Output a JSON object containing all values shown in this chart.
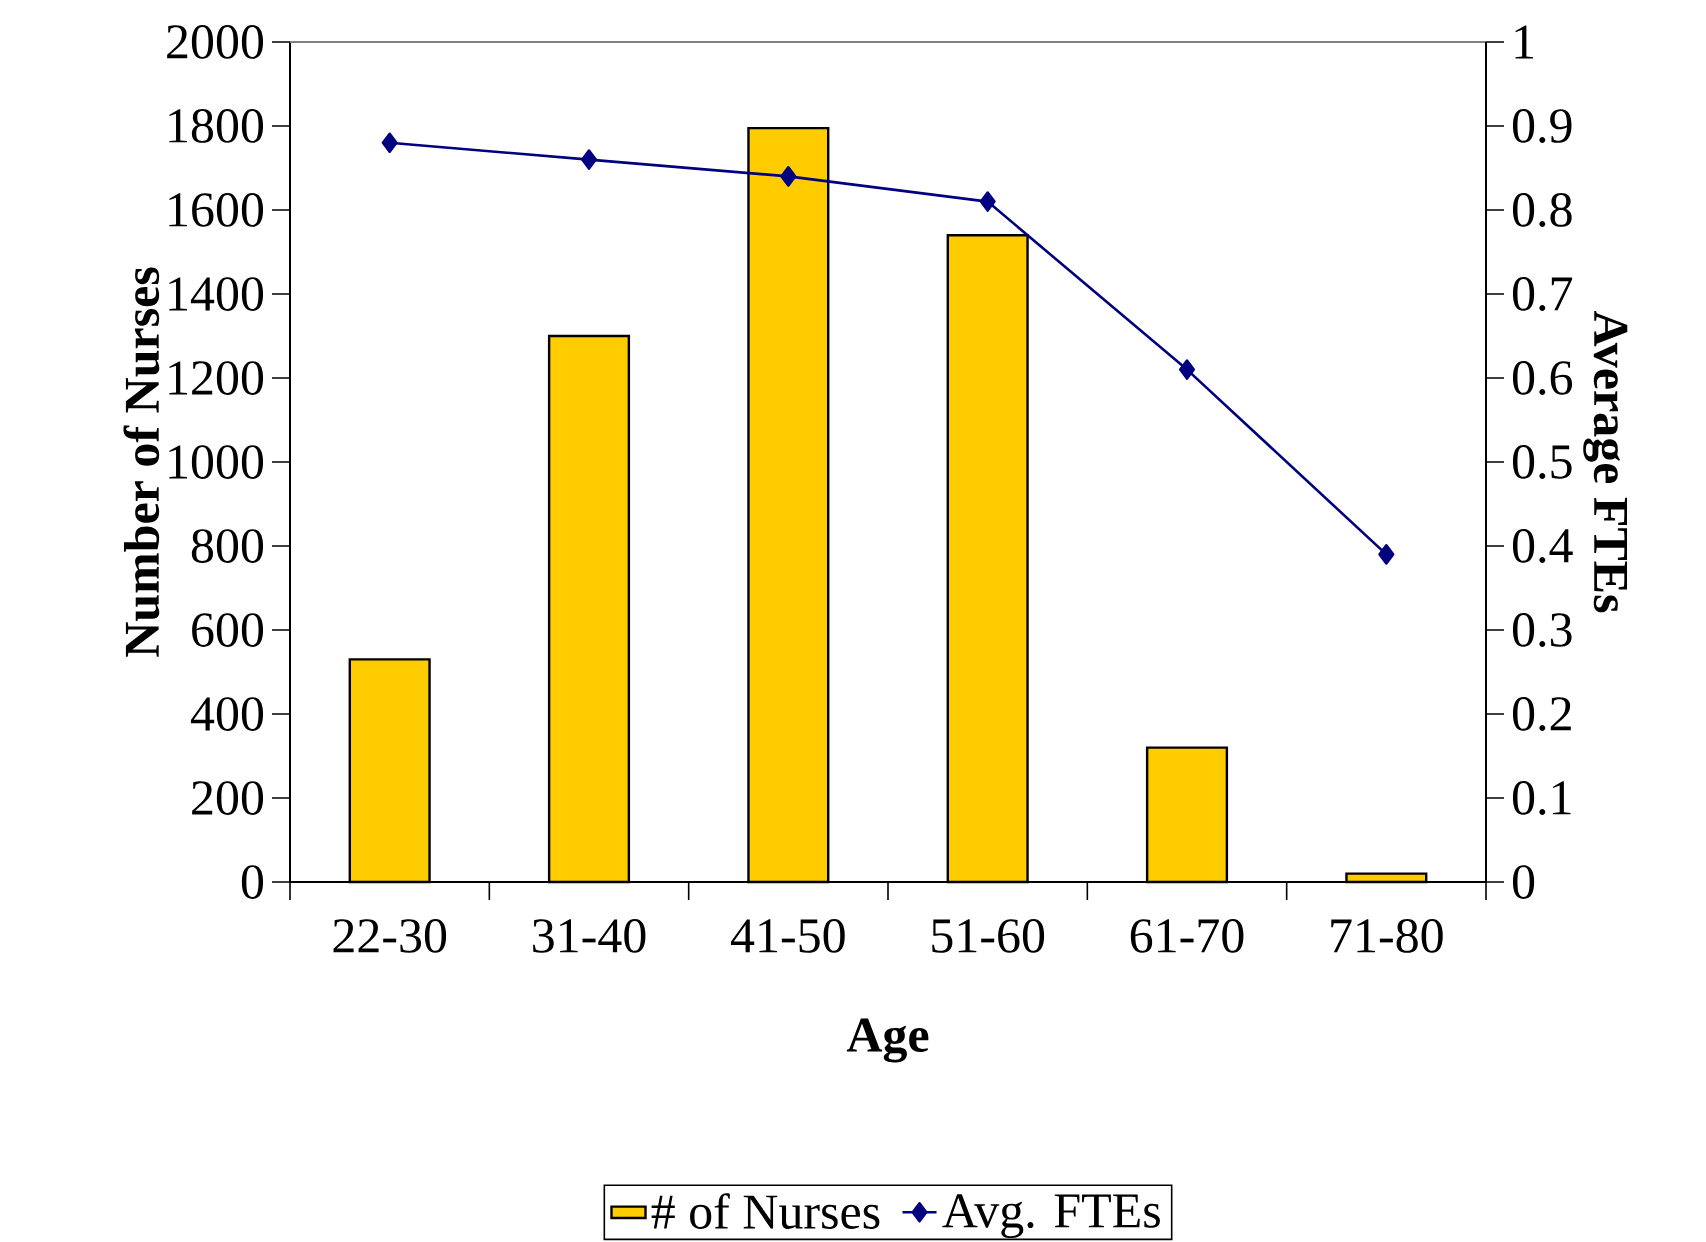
{
  "chart_data": {
    "type": "bar",
    "xlabel": "Age",
    "ylabel": "Number of Nurses",
    "y2label": "Average FTEs",
    "categories": [
      "22-30",
      "31-40",
      "41-50",
      "51-60",
      "61-70",
      "71-80"
    ],
    "series": [
      {
        "name": "# of Nurses",
        "color": "#ffcc00",
        "values": [
          530,
          1300,
          1795,
          1540,
          320,
          20
        ]
      },
      {
        "name": "Avg. FTEs",
        "type": "line",
        "axis": "y2",
        "color": "#000080",
        "marker": "diamond",
        "values": [
          0.88,
          0.86,
          0.84,
          0.81,
          0.61,
          0.39
        ]
      }
    ],
    "ylim": [
      0,
      2000
    ],
    "yticks": [
      0,
      200,
      400,
      600,
      800,
      1000,
      1200,
      1400,
      1600,
      1800,
      2000
    ],
    "y2lim": [
      0,
      1
    ],
    "y2ticks": [
      0,
      0.1,
      0.2,
      0.3,
      0.4,
      0.5,
      0.6,
      0.7,
      0.8,
      0.9,
      1
    ],
    "legend": "bottom"
  }
}
